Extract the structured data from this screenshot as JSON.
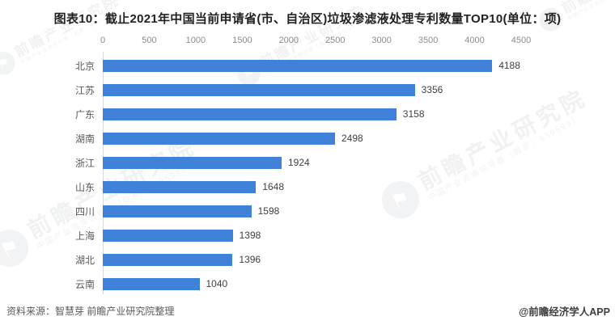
{
  "title": "图表10：截止2021年中国当前申请省(市、自治区)垃圾渗滤液处理专利数量TOP10(单位：项)",
  "chart_data": {
    "type": "bar",
    "orientation": "horizontal",
    "title": "截止2021年中国当前申请省(市、自治区)垃圾渗滤液处理专利数量TOP10",
    "unit": "项",
    "categories": [
      "北京",
      "江苏",
      "广东",
      "湖南",
      "浙江",
      "山东",
      "四川",
      "上海",
      "湖北",
      "云南"
    ],
    "values": [
      4188,
      3356,
      3158,
      2498,
      1924,
      1648,
      1598,
      1398,
      1396,
      1040
    ],
    "xlim": [
      0,
      4500
    ],
    "x_ticks": [
      0,
      500,
      1000,
      1500,
      2000,
      2500,
      3000,
      3500,
      4000,
      4500
    ],
    "grid": false,
    "value_labels": true,
    "bar_color": "#4081d9",
    "axis_line_color": "#d9d9d9",
    "legend_position": "none"
  },
  "footer": {
    "source": "资料来源：智慧芽 前瞻产业研究院整理",
    "credit": "@前瞻经济学人APP"
  },
  "watermark": {
    "logo_icon": "qianzhan-circle-logo",
    "logo_glyph": "⚑",
    "brand_text": "前瞻产业研究院",
    "sub_text": "中国产业咨询领导者（股票：839599）"
  }
}
